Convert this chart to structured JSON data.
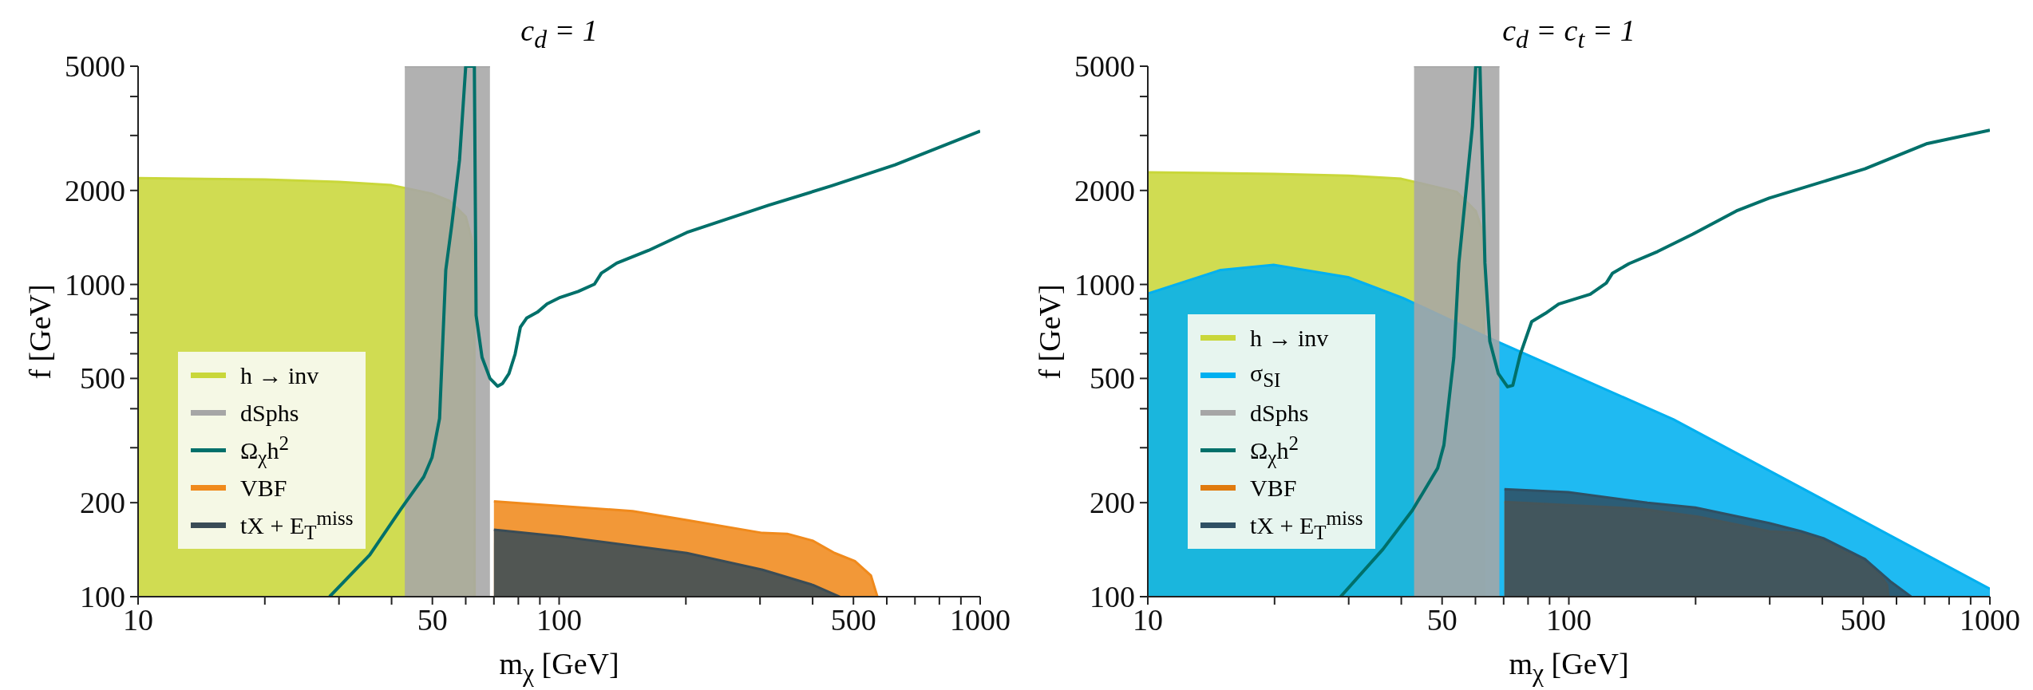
{
  "chart_data": [
    {
      "type": "area",
      "title": "c$_{d}$ = 1",
      "xlabel": "m$_{χ}$  [GeV]",
      "ylabel": "f  [GeV]",
      "log": "xy",
      "grid": false,
      "legend": "bottom left",
      "xlim": [
        10,
        1000
      ],
      "ylim": [
        100,
        5000
      ],
      "xticks": [
        10,
        {
          "value": 20,
          "label": null
        },
        {
          "value": 30,
          "label": null
        },
        {
          "value": 40,
          "label": null
        },
        50,
        {
          "value": 60,
          "label": null
        },
        {
          "value": 70,
          "label": null
        },
        {
          "value": 80,
          "label": null
        },
        {
          "value": 90,
          "label": null
        },
        100,
        {
          "value": 200,
          "label": null
        },
        {
          "value": 300,
          "label": null
        },
        {
          "value": 400,
          "label": null
        },
        500,
        {
          "value": 600,
          "label": null
        },
        {
          "value": 700,
          "label": null
        },
        {
          "value": 800,
          "label": null
        },
        {
          "value": 900,
          "label": null
        },
        1000
      ],
      "yticks": [
        100,
        200,
        {
          "value": 300,
          "label": null
        },
        {
          "value": 400,
          "label": null
        },
        500,
        {
          "value": 600,
          "label": null
        },
        {
          "value": 700,
          "label": null
        },
        {
          "value": 800,
          "label": null
        },
        {
          "value": 900,
          "label": null
        },
        1000,
        2000,
        {
          "value": 3000,
          "label": null
        },
        {
          "value": 4000,
          "label": null
        },
        5000
      ],
      "series": [
        {
          "name": "h → inv",
          "type": "area",
          "color": "#c9d73a",
          "x": [
            10,
            20,
            30,
            40,
            50,
            55,
            60,
            62,
            62.9,
            63
          ],
          "values": [
            2190,
            2170,
            2130,
            2080,
            1950,
            1850,
            1650,
            1400,
            1100,
            100
          ]
        },
        {
          "name": "dSphs",
          "type": "area",
          "color": "#a6a6a6",
          "x": [
            43,
            68.5
          ],
          "values": [
            5000,
            5000
          ]
        },
        {
          "name": "Ω$_{χ}$h$^{2}$",
          "type": "line",
          "color": "#00706a",
          "x": [
            28.5,
            35.5,
            42,
            47.7,
            49.9,
            52,
            53.8,
            55.6,
            58,
            60,
            62.9,
            63.5,
            65.6,
            68.5,
            71.4,
            73.4,
            76,
            78.6,
            80.9,
            83.7,
            88.8,
            93.6,
            100.6,
            111,
            121.3,
            126,
            137,
            163,
            201,
            314,
            444,
            628,
            1000
          ],
          "values": [
            100,
            136,
            190,
            242,
            279,
            372,
            1112,
            1553,
            2505,
            5000,
            5000,
            797,
            584,
            500,
            472,
            482,
            518,
            598,
            730,
            780,
            815,
            866,
            909,
            950,
            1002,
            1087,
            1170,
            1285,
            1467,
            1792,
            2070,
            2416,
            3100
          ]
        },
        {
          "name": "VBF",
          "type": "area",
          "color": "#f08a1c",
          "x": [
            70,
            149.5,
            201,
            304,
            348,
            401,
            451,
            504,
            550,
            570
          ],
          "values": [
            202,
            188,
            176,
            160,
            159,
            151,
            138,
            130,
            117,
            100
          ]
        },
        {
          "name": "tX + E$_{T}$$^{miss}$",
          "type": "area",
          "color": "#3a4c56",
          "x": [
            70,
            100.6,
            201,
            304,
            401,
            464
          ],
          "values": [
            164,
            156,
            138,
            122,
            109,
            100
          ]
        }
      ]
    },
    {
      "type": "area",
      "title": "c$_{d}$ = c$_{t}$ = 1",
      "xlabel": "m$_{χ}$  [GeV]",
      "ylabel": "f  [GeV]",
      "log": "xy",
      "grid": false,
      "legend": "bottom left",
      "xlim": [
        10,
        1000
      ],
      "ylim": [
        100,
        5000
      ],
      "xticks": [
        10,
        {
          "value": 20,
          "label": null
        },
        {
          "value": 30,
          "label": null
        },
        {
          "value": 40,
          "label": null
        },
        50,
        {
          "value": 60,
          "label": null
        },
        {
          "value": 70,
          "label": null
        },
        {
          "value": 80,
          "label": null
        },
        {
          "value": 90,
          "label": null
        },
        100,
        {
          "value": 200,
          "label": null
        },
        {
          "value": 300,
          "label": null
        },
        {
          "value": 400,
          "label": null
        },
        500,
        {
          "value": 600,
          "label": null
        },
        {
          "value": 700,
          "label": null
        },
        {
          "value": 800,
          "label": null
        },
        {
          "value": 900,
          "label": null
        },
        1000
      ],
      "yticks": [
        100,
        200,
        {
          "value": 300,
          "label": null
        },
        {
          "value": 400,
          "label": null
        },
        500,
        {
          "value": 600,
          "label": null
        },
        {
          "value": 700,
          "label": null
        },
        {
          "value": 800,
          "label": null
        },
        {
          "value": 900,
          "label": null
        },
        1000,
        2000,
        {
          "value": 3000,
          "label": null
        },
        {
          "value": 4000,
          "label": null
        },
        5000
      ],
      "series": [
        {
          "name": "h → inv",
          "type": "area",
          "color": "#c9d73a",
          "x": [
            10,
            20,
            30,
            40,
            54.1,
            60.1,
            62.3,
            62.9,
            63
          ],
          "values": [
            2287,
            2260,
            2230,
            2180,
            1981,
            1719,
            1488,
            920,
            100
          ]
        },
        {
          "name": "σ$_{SI}$",
          "type": "area",
          "color": "#00b0f0",
          "x": [
            10,
            14.9,
            19.9,
            29.9,
            40.3,
            62.3,
            177,
            1000
          ],
          "values": [
            934,
            1113,
            1156,
            1055,
            906,
            689,
            370,
            106
          ]
        },
        {
          "name": "dSphs",
          "type": "area",
          "color": "#a6a6a6",
          "x": [
            42.9,
            68.4
          ],
          "values": [
            5000,
            5000
          ]
        },
        {
          "name": "Ω$_{χ}$h$^{2}$",
          "type": "line",
          "color": "#00706a",
          "x": [
            28.7,
            36.2,
            42.5,
            48.8,
            50.5,
            53.3,
            54.8,
            59,
            60.1,
            61.5,
            63.2,
            64.9,
            68,
            71.5,
            73.6,
            76.7,
            81.6,
            88,
            94.6,
            112.4,
            122.7,
            127,
            139,
            162.5,
            197,
            250,
            299,
            505,
            710,
            1000
          ],
          "values": [
            100,
            142,
            189,
            258,
            306,
            583,
            1170,
            3200,
            5000,
            5000,
            1170,
            658,
            518,
            470,
            475,
            598,
            760,
            808,
            866,
            930,
            1010,
            1087,
            1166,
            1275,
            1450,
            1720,
            1890,
            2345,
            2827,
            3120
          ]
        },
        {
          "name": "VBF",
          "type": "area",
          "color": "#e07a0e",
          "x": [
            70.3,
            149,
            204,
            299,
            349,
            402,
            452,
            505,
            550,
            570,
            574
          ],
          "values": [
            201,
            191,
            180,
            162,
            160,
            152,
            139,
            132,
            117,
            109,
            100
          ]
        },
        {
          "name": "tX + E$_{T}$$^{miss}$",
          "type": "area",
          "color": "#2f5064",
          "x": [
            70.3,
            99.7,
            153.8,
            199.6,
            299,
            356,
            402,
            505,
            580,
            650
          ],
          "values": [
            221,
            216,
            200,
            193,
            172,
            162,
            154,
            132,
            112,
            100
          ]
        }
      ]
    }
  ]
}
